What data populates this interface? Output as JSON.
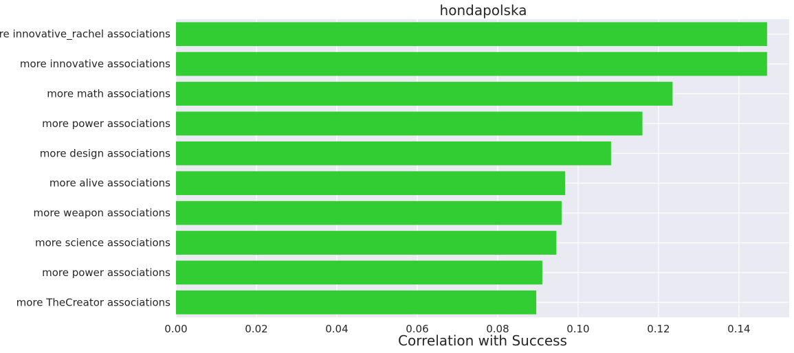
{
  "chart_data": {
    "type": "bar",
    "orientation": "horizontal",
    "title": "hondapolska",
    "xlabel": "Correlation with Success",
    "ylabel": "",
    "categories": [
      "more innovative_rachel associations",
      "more innovative associations",
      "more math associations",
      "more power associations",
      "more design associations",
      "more alive associations",
      "more weapon associations",
      "more science associations",
      "more power associations",
      "more TheCreator associations"
    ],
    "values": [
      0.147,
      0.147,
      0.1235,
      0.116,
      0.1082,
      0.0968,
      0.0959,
      0.0946,
      0.0911,
      0.0896
    ],
    "xlim": [
      0,
      0.1525
    ],
    "xticks": [
      "0.00",
      "0.02",
      "0.04",
      "0.06",
      "0.08",
      "0.10",
      "0.12",
      "0.14"
    ],
    "xtick_values": [
      0,
      0.02,
      0.04,
      0.06,
      0.08,
      0.1,
      0.12,
      0.14
    ],
    "grid": true,
    "legend": "none",
    "colors": {
      "bar": "#32cd32",
      "plot_background": "#eaeaf2",
      "grid": "#ffffff",
      "text": "#262626"
    }
  }
}
